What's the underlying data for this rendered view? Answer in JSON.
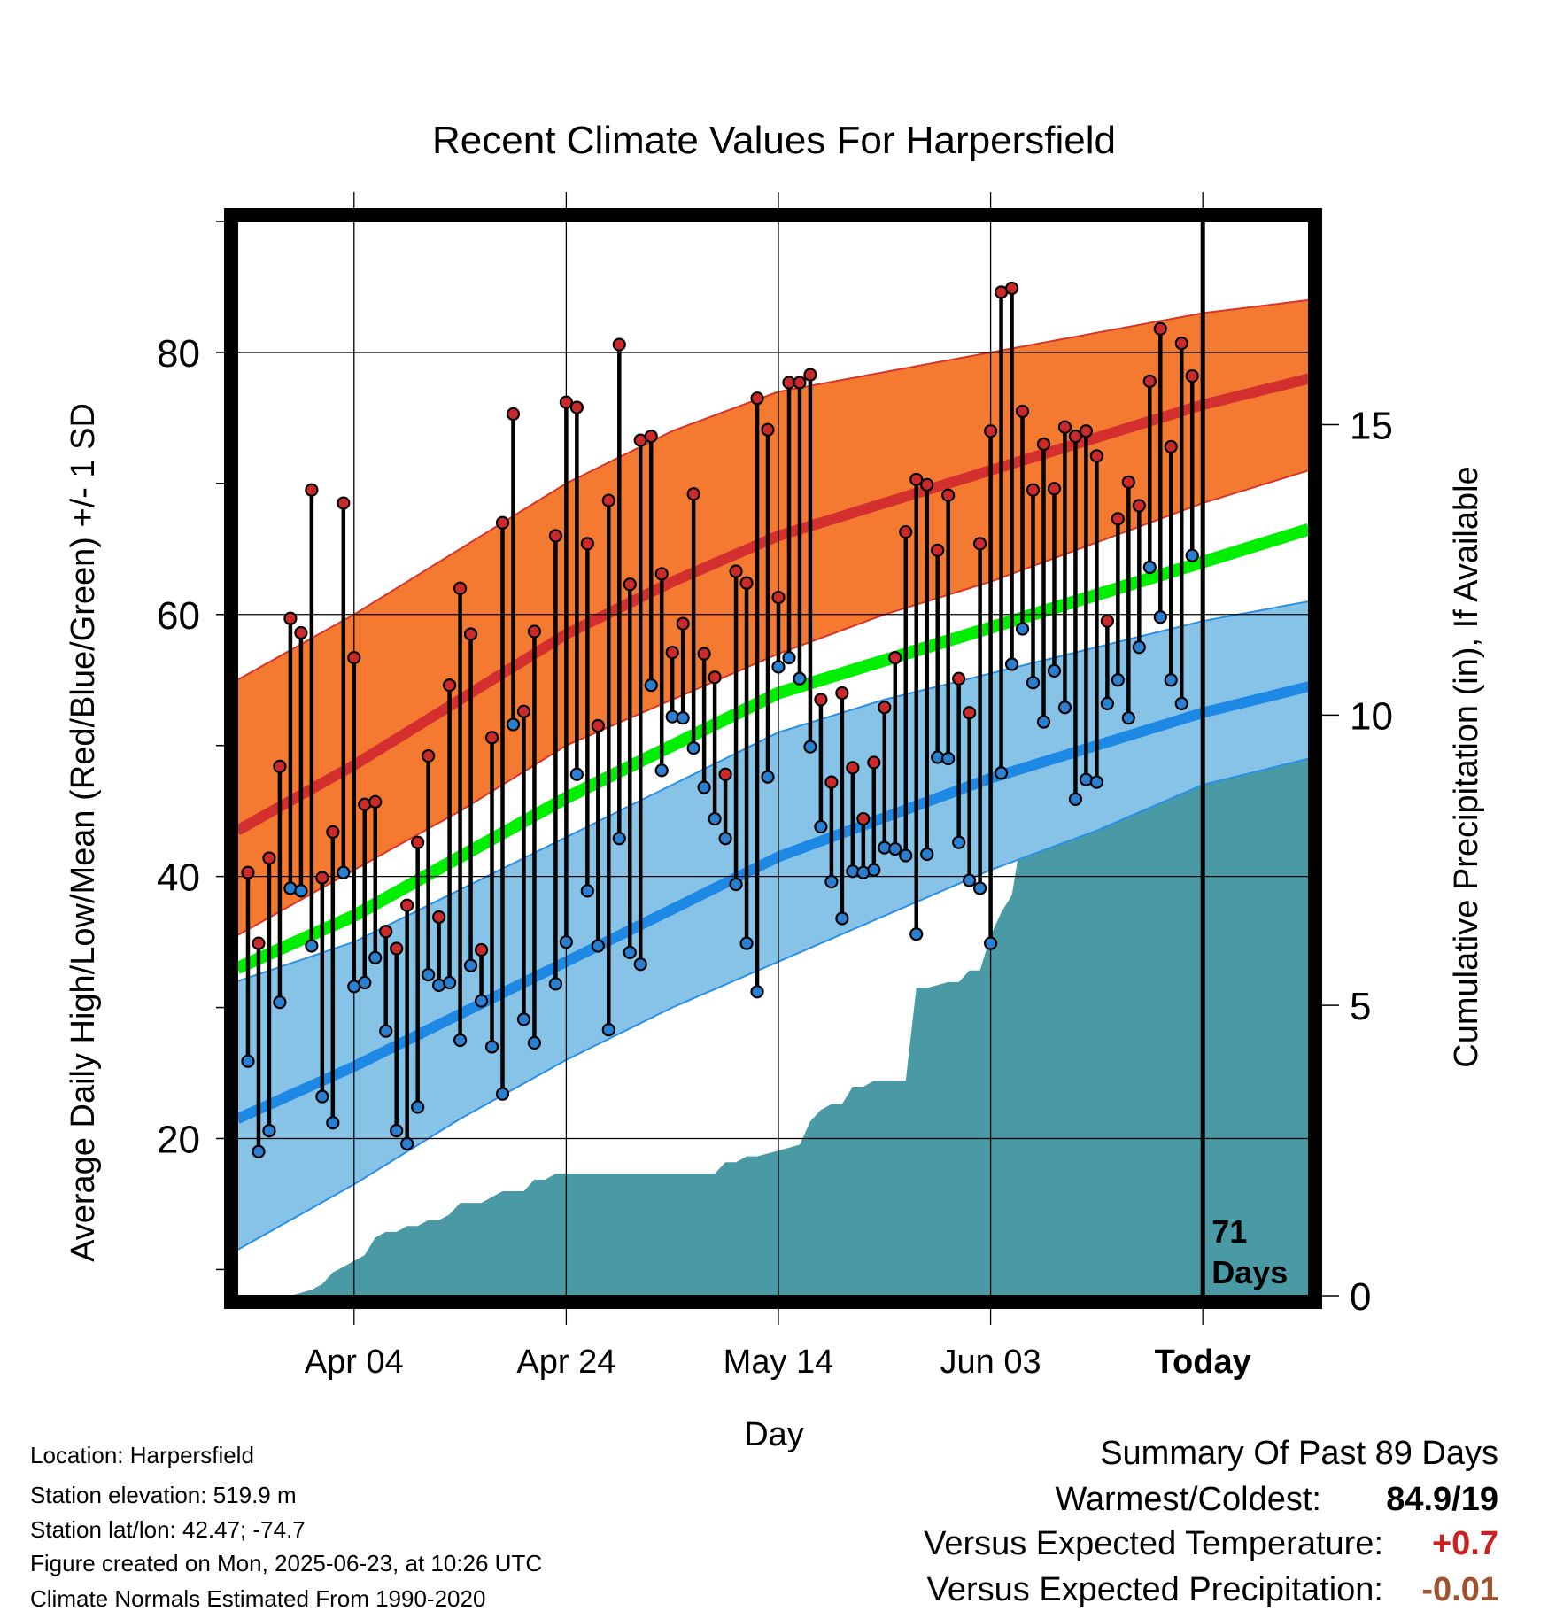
{
  "chart_data": {
    "type": "line",
    "title": "Recent Climate Values For Harpersfield",
    "xlabel": "Day",
    "ylabel": "Average Daily High/Low/Mean (Red/Blue/Green) +/- 1 SD",
    "y2label": "Cumulative Precipitation (in), If Available",
    "ylim": [
      8,
      90
    ],
    "y2lim": [
      0,
      18.5
    ],
    "yticks": [
      20,
      40,
      60,
      80
    ],
    "y2ticks": [
      0,
      5,
      10,
      15
    ],
    "xlim": [
      -11,
      90
    ],
    "xticks": [
      {
        "day": 0,
        "label": "Apr 04"
      },
      {
        "day": 20,
        "label": "Apr 24"
      },
      {
        "day": 40,
        "label": "May 14"
      },
      {
        "day": 60,
        "label": "Jun 03"
      },
      {
        "day": 80,
        "label": "Today"
      }
    ],
    "today_day": 80,
    "days_label": "71\nDays",
    "grid": true,
    "normals_days": [
      -11,
      0,
      10,
      20,
      30,
      40,
      50,
      60,
      70,
      80,
      90
    ],
    "normal_high": [
      43.5,
      48.5,
      53.5,
      58.5,
      62.5,
      66,
      68.5,
      71,
      73.5,
      76,
      78
    ],
    "normal_high_upper": [
      55,
      60,
      65,
      70,
      74,
      77,
      78.5,
      80,
      81.5,
      83,
      84
    ],
    "normal_high_lower": [
      35.5,
      40.5,
      45,
      50,
      53.5,
      57,
      60,
      62.5,
      65.5,
      68.5,
      71
    ],
    "normal_low": [
      21.5,
      25.5,
      29.5,
      33.5,
      37.5,
      41.5,
      44.5,
      47.5,
      50,
      52.5,
      54.5
    ],
    "normal_low_upper": [
      32,
      35,
      39,
      43,
      47,
      51,
      53.5,
      55.5,
      57.5,
      59.5,
      61
    ],
    "normal_low_lower": [
      11.5,
      16.5,
      21.5,
      26,
      30,
      33.5,
      37,
      40.5,
      43.5,
      47,
      49
    ],
    "normal_mean": [
      33,
      37,
      41.5,
      46,
      50,
      54,
      56.5,
      59,
      61.5,
      64,
      66.5
    ],
    "highs": [
      40.3,
      34.9,
      41.4,
      48.4,
      59.7,
      58.6,
      69.5,
      39.9,
      43.4,
      68.5,
      56.7,
      45.5,
      45.7,
      35.8,
      34.5,
      37.8,
      42.6,
      49.2,
      36.9,
      54.6,
      62.0,
      58.5,
      34.4,
      50.6,
      67.0,
      75.3,
      52.6,
      58.7,
      null,
      66.0,
      76.2,
      75.8,
      65.4,
      51.5,
      68.7,
      80.6,
      62.3,
      73.3,
      73.6,
      63.1,
      57.1,
      59.3,
      69.2,
      57.0,
      55.2,
      47.8,
      63.3,
      62.4,
      76.5,
      74.1,
      61.3,
      77.7,
      77.7,
      78.3,
      53.5,
      47.2,
      54.0,
      48.3,
      44.4,
      48.7,
      52.9,
      56.7,
      66.3,
      70.3,
      69.9,
      64.9,
      69.1,
      55.1,
      52.5,
      65.4,
      74.0,
      84.6,
      84.9,
      75.5,
      69.5,
      73.0,
      69.6,
      74.3,
      73.6,
      74.0,
      72.1,
      59.5,
      67.3,
      70.1,
      68.3,
      77.8,
      81.8,
      72.8,
      80.7,
      78.2
    ],
    "lows": [
      25.9,
      19.0,
      20.6,
      30.4,
      39.1,
      38.9,
      34.7,
      23.2,
      21.2,
      40.3,
      31.6,
      31.9,
      33.8,
      28.2,
      20.6,
      19.6,
      22.4,
      32.5,
      31.7,
      31.9,
      27.5,
      33.2,
      30.5,
      27.0,
      23.4,
      51.6,
      29.1,
      27.3,
      null,
      31.8,
      35.0,
      47.8,
      38.9,
      34.7,
      28.3,
      42.9,
      34.2,
      33.3,
      54.6,
      48.1,
      52.2,
      52.1,
      49.8,
      46.8,
      44.4,
      42.9,
      39.4,
      34.9,
      31.2,
      47.6,
      56.0,
      56.7,
      55.1,
      49.9,
      43.8,
      39.6,
      36.8,
      40.4,
      40.3,
      40.5,
      42.2,
      42.1,
      41.6,
      35.6,
      41.7,
      49.1,
      49.0,
      42.6,
      39.7,
      39.1,
      34.9,
      47.9,
      56.2,
      58.9,
      54.8,
      51.8,
      55.7,
      52.9,
      45.9,
      47.4,
      47.2,
      53.2,
      55.0,
      52.1,
      57.5,
      63.6,
      59.8,
      55.0,
      53.2,
      64.5
    ],
    "precip_days": [
      -11,
      -6,
      -4,
      -3,
      -2,
      0,
      1,
      2,
      3,
      4,
      5,
      6,
      7,
      8,
      9,
      10,
      12,
      13,
      14,
      15,
      16,
      17,
      18,
      19,
      20,
      21,
      25,
      30,
      34,
      35,
      36,
      37,
      38,
      40,
      42,
      43,
      44,
      45,
      46,
      47,
      48,
      49,
      50,
      51,
      52,
      53,
      54,
      56,
      57,
      58,
      59,
      60,
      61,
      62,
      63,
      64,
      65,
      66,
      67,
      68,
      69,
      70,
      71,
      72,
      73,
      74,
      75,
      76,
      77,
      78,
      79,
      80,
      90
    ],
    "precip_values": [
      0,
      0,
      0.1,
      0.2,
      0.4,
      0.6,
      0.7,
      1.0,
      1.1,
      1.1,
      1.2,
      1.2,
      1.3,
      1.3,
      1.4,
      1.6,
      1.6,
      1.7,
      1.8,
      1.8,
      1.8,
      2.0,
      2.0,
      2.1,
      2.1,
      2.1,
      2.1,
      2.1,
      2.1,
      2.3,
      2.3,
      2.4,
      2.4,
      2.5,
      2.6,
      3.0,
      3.2,
      3.3,
      3.3,
      3.6,
      3.6,
      3.7,
      3.7,
      3.7,
      3.7,
      5.3,
      5.3,
      5.4,
      5.4,
      5.6,
      5.6,
      6.2,
      6.6,
      6.9,
      8.0,
      8.3,
      8.6,
      8.8,
      8.8,
      9.0,
      9.0,
      9.1,
      9.1,
      9.1,
      9.2,
      9.3,
      9.4,
      9.5,
      9.5,
      9.6,
      9.6,
      9.7,
      9.7
    ]
  },
  "info": {
    "location": "Location: Harpersfield",
    "elevation": "Station elevation: 519.9 m",
    "latlon": "Station lat/lon: 42.47; -74.7",
    "created": "Figure created on Mon, 2025-06-23, at 10:26 UTC",
    "normals": "Climate Normals Estimated From 1990-2020"
  },
  "summary": {
    "title": "Summary Of Past 89 Days",
    "warmest_label": "Warmest/Coldest:",
    "warmest_value": "84.9/19",
    "temp_label": "Versus Expected Temperature:",
    "temp_value": "+0.7",
    "precip_label": "Versus Expected Precipitation:",
    "precip_value": "-0.01"
  },
  "colors": {
    "high_band": "#f47a31",
    "high_line": "#d32f2f",
    "low_band": "#86c3e6",
    "low_line": "#1e88e5",
    "mean_line": "#00ee00",
    "precip": "#4a9aa5",
    "high_point": "#cc2a2a",
    "low_point": "#2a7fd0",
    "temp_value": "#cc2020",
    "precip_value": "#a0522d"
  }
}
